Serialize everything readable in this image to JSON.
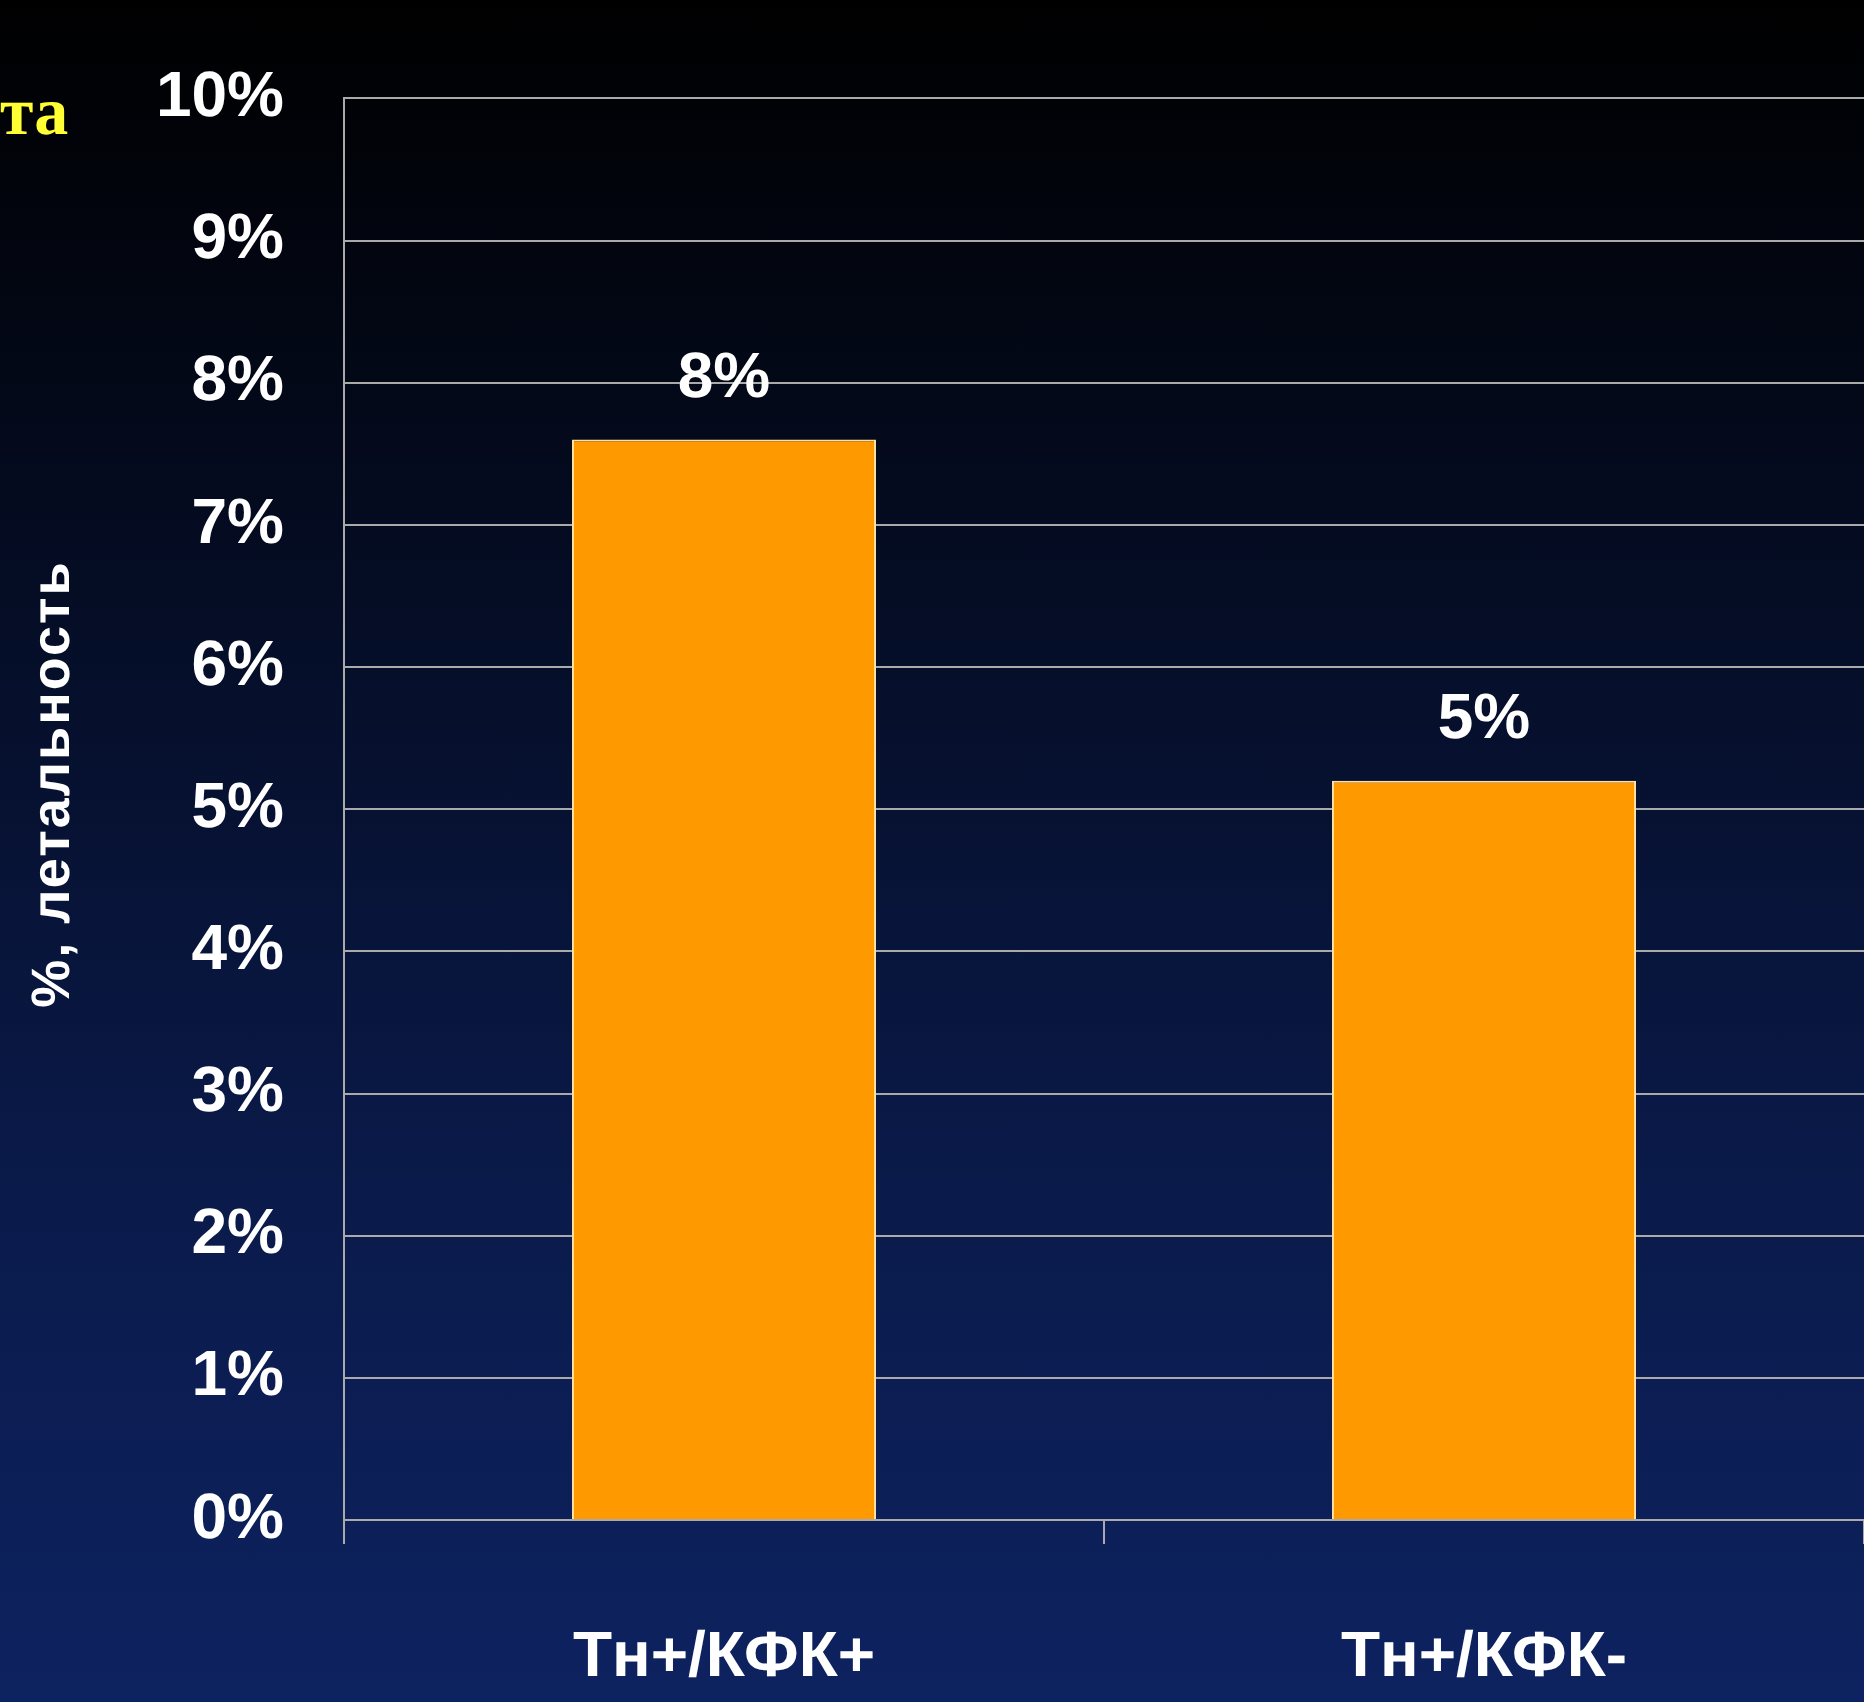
{
  "chart_data": {
    "type": "bar",
    "ylabel": "%, летальность",
    "annotations": [
      "та"
    ],
    "categories": [
      "Тн+/КФК+",
      "Тн+/КФК-"
    ],
    "values": [
      7.6,
      5.2
    ],
    "value_labels": [
      "8%",
      "5%"
    ],
    "color": "#ff9900",
    "ylim": [
      0,
      10
    ],
    "yticks": [
      {
        "value": 0,
        "label": "0%"
      },
      {
        "value": 1,
        "label": "1%"
      },
      {
        "value": 2,
        "label": "2%"
      },
      {
        "value": 3,
        "label": "3%"
      },
      {
        "value": 4,
        "label": "4%"
      },
      {
        "value": 5,
        "label": "5%"
      },
      {
        "value": 6,
        "label": "6%"
      },
      {
        "value": 7,
        "label": "7%"
      },
      {
        "value": 8,
        "label": "8%"
      },
      {
        "value": 9,
        "label": "9%"
      },
      {
        "value": 10,
        "label": "10%"
      }
    ],
    "grid": "y"
  }
}
